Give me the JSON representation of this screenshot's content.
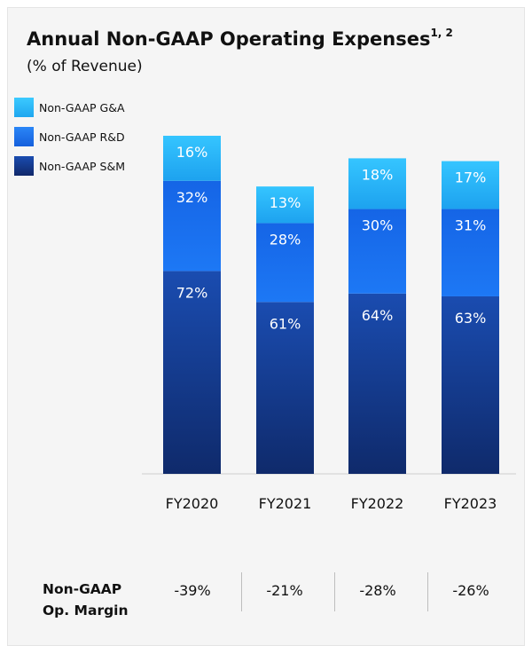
{
  "chart_data": {
    "type": "bar",
    "stacked": true,
    "title": "Annual Non-GAAP Operating Expenses",
    "title_superscript": "1, 2",
    "subtitle": "(% of Revenue)",
    "categories": [
      "FY2020",
      "FY2021",
      "FY2022",
      "FY2023"
    ],
    "series": [
      {
        "name": "Non-GAAP S&M",
        "values": [
          72,
          61,
          64,
          63
        ],
        "labels": [
          "72%",
          "61%",
          "64%",
          "63%"
        ],
        "color": "#173a8c"
      },
      {
        "name": "Non-GAAP R&D",
        "values": [
          32,
          28,
          30,
          31
        ],
        "labels": [
          "32%",
          "28%",
          "30%",
          "31%"
        ],
        "color": "#1c6ff0"
      },
      {
        "name": "Non-GAAP G&A",
        "values": [
          16,
          13,
          18,
          17
        ],
        "labels": [
          "16%",
          "13%",
          "18%",
          "17%"
        ],
        "color": "#2bb8f7"
      }
    ],
    "legend_position": "top-left",
    "grid": false
  },
  "margin_row": {
    "title_line1": "Non-GAAP",
    "title_line2": "Op. Margin",
    "values": [
      "-39%",
      "-21%",
      "-28%",
      "-26%"
    ]
  }
}
